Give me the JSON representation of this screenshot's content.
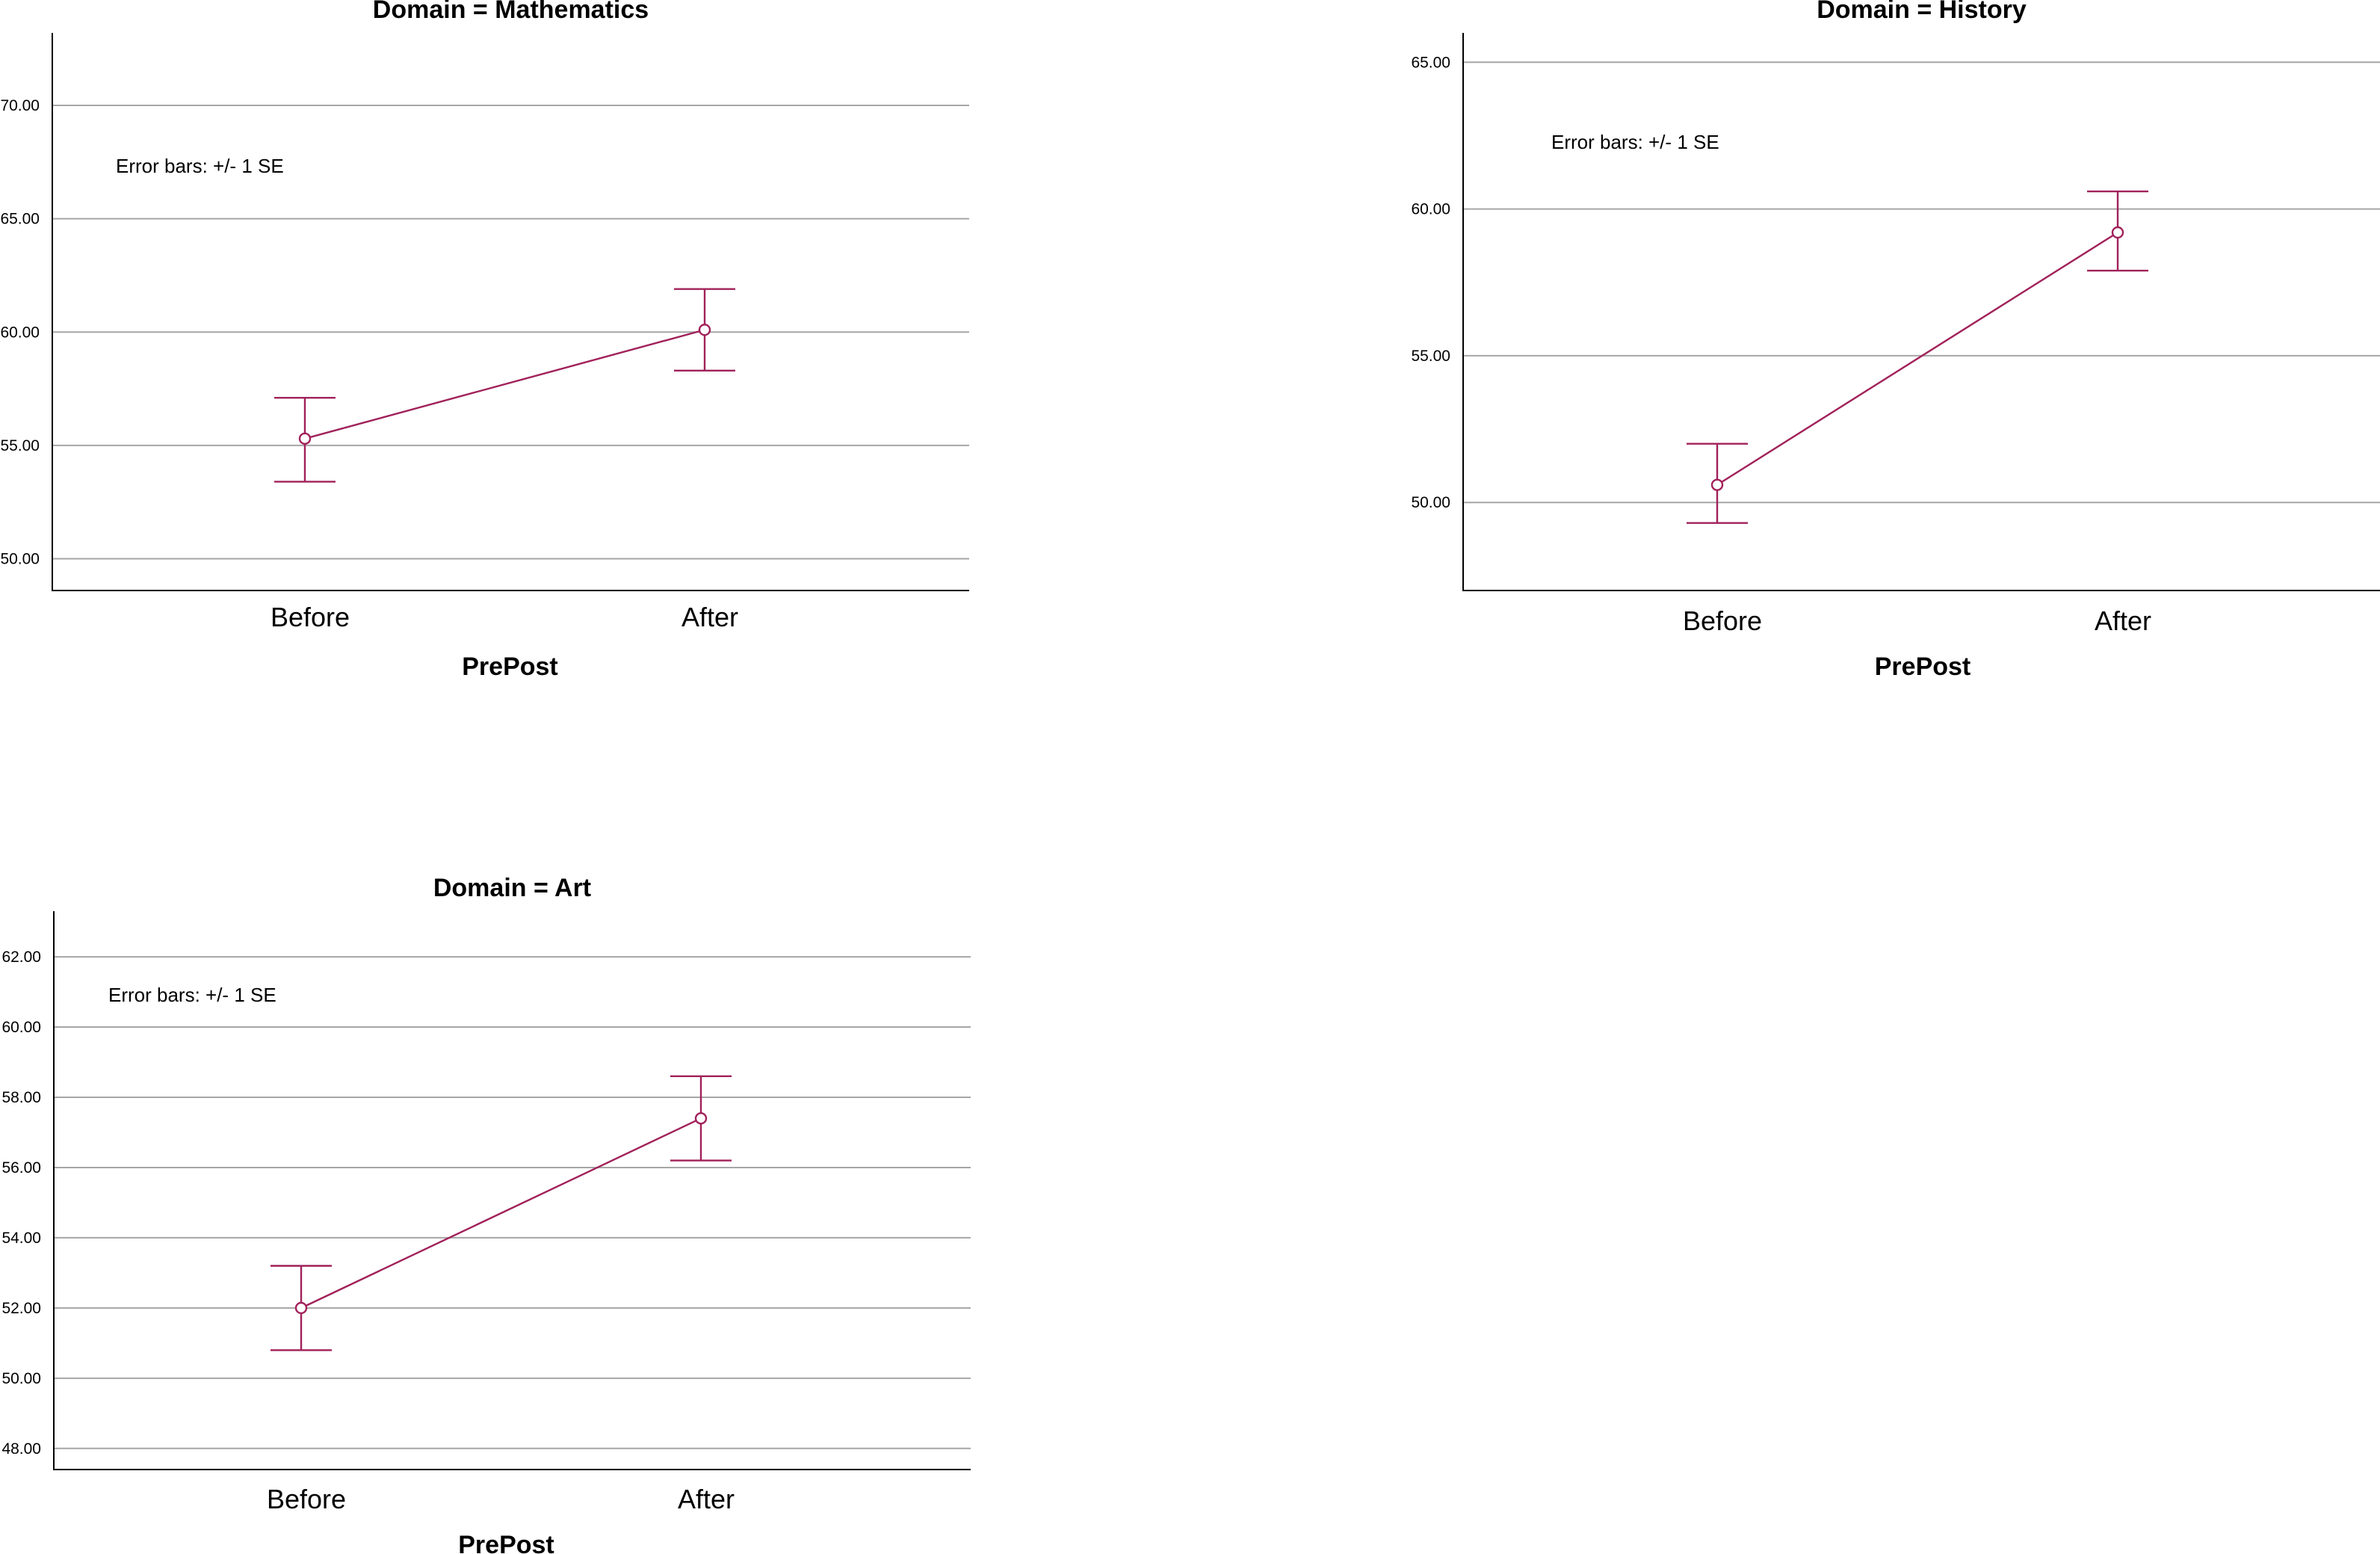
{
  "style": {
    "series_color": "#a1215a",
    "grid_color": "#a6a6a6"
  },
  "chart_data": [
    {
      "type": "line",
      "title": "Domain = Mathematics",
      "xlabel": "PrePost",
      "ylabel": "",
      "categories": [
        "Before",
        "After"
      ],
      "values": [
        55.3,
        60.1
      ],
      "error_low": [
        53.4,
        58.3
      ],
      "error_high": [
        57.1,
        61.9
      ],
      "annotation": "Error bars: +/- 1 SE",
      "yticks": [
        "50.00",
        "55.00",
        "60.00",
        "65.00",
        "70.00"
      ],
      "ytick_values": [
        50,
        55,
        60,
        65,
        70
      ],
      "ylim": [
        48.6,
        73.2
      ],
      "grid": true
    },
    {
      "type": "line",
      "title": "Domain = History",
      "xlabel": "PrePost",
      "ylabel": "",
      "categories": [
        "Before",
        "After"
      ],
      "values": [
        50.6,
        59.2
      ],
      "error_low": [
        49.3,
        57.9
      ],
      "error_high": [
        52.0,
        60.6
      ],
      "annotation": "Error bars: +/- 1 SE",
      "yticks": [
        "50.00",
        "55.00",
        "60.00",
        "65.00"
      ],
      "ytick_values": [
        50,
        55,
        60,
        65
      ],
      "ylim": [
        47.0,
        66.0
      ],
      "grid": true
    },
    {
      "type": "line",
      "title": "Domain = Art",
      "xlabel": "PrePost",
      "ylabel": "",
      "categories": [
        "Before",
        "After"
      ],
      "values": [
        52.0,
        57.4
      ],
      "error_low": [
        50.8,
        56.2
      ],
      "error_high": [
        53.2,
        58.6
      ],
      "annotation": "Error bars: +/- 1 SE",
      "yticks": [
        "48.00",
        "50.00",
        "52.00",
        "54.00",
        "56.00",
        "58.00",
        "60.00",
        "62.00"
      ],
      "ytick_values": [
        48,
        50,
        52,
        54,
        56,
        58,
        60,
        62
      ],
      "ylim": [
        47.4,
        63.3
      ],
      "grid": true
    }
  ]
}
